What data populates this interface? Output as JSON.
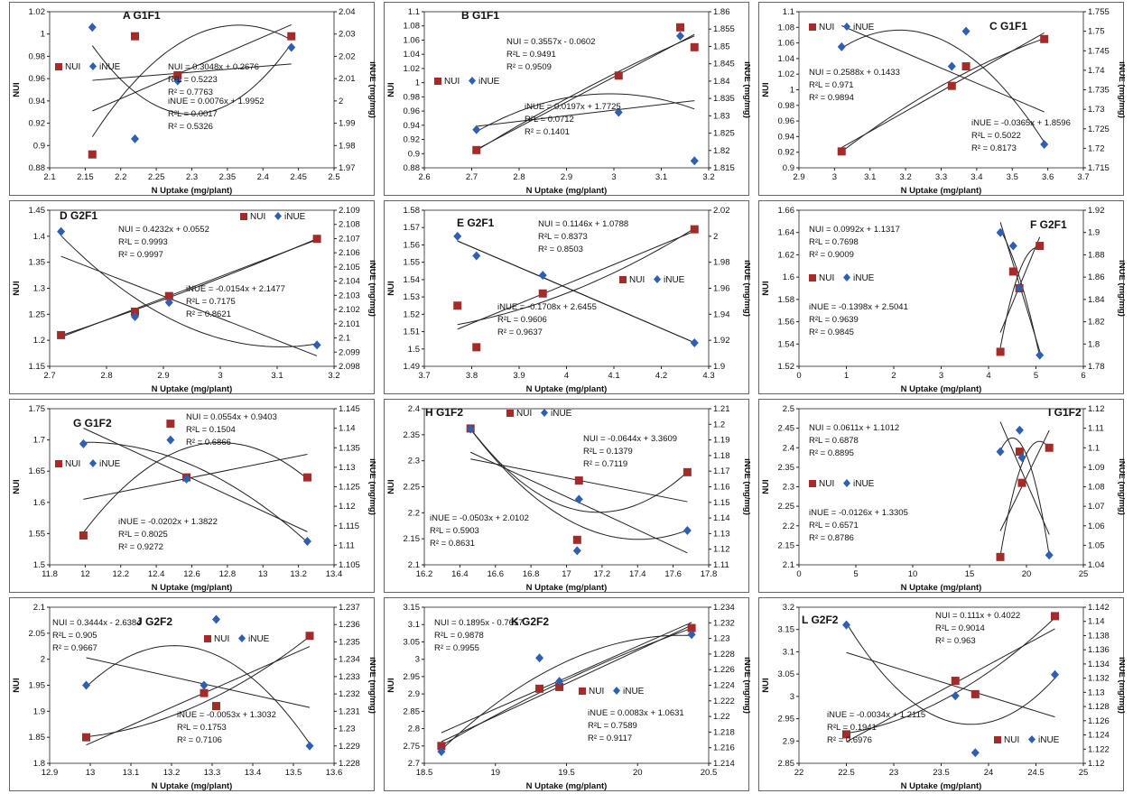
{
  "chart_data": [
    {
      "type": "scatter",
      "title": "A G1F1",
      "xlabel": "N Uptake (mg/plant)",
      "ylabel": "NUI",
      "y2label": "iNUE (mg/mg)",
      "xlim": [
        2.1,
        2.5
      ],
      "xticks": [
        2.1,
        2.15,
        2.2,
        2.25,
        2.3,
        2.35,
        2.4,
        2.45,
        2.5
      ],
      "ylim": [
        0.88,
        1.02
      ],
      "yticks": [
        0.88,
        0.9,
        0.92,
        0.94,
        0.96,
        0.98,
        1,
        1.02
      ],
      "y2lim": [
        1.97,
        2.04
      ],
      "y2ticks": [
        1.97,
        1.98,
        1.99,
        2,
        2.01,
        2.02,
        2.03,
        2.04
      ],
      "legend": [
        "NUI",
        "iNUE"
      ],
      "series": [
        {
          "name": "NUI",
          "x": [
            2.16,
            2.22,
            2.28,
            2.44
          ],
          "y": [
            0.892,
            0.998,
            0.963,
            0.998
          ]
        },
        {
          "name": "iNUE",
          "x": [
            2.16,
            2.22,
            2.28,
            2.44
          ],
          "y": [
            2.033,
            1.983,
            2.009,
            2.024
          ]
        }
      ],
      "equations": [
        "NUI = 0.3048x + 0.2676",
        "R²L = 0.5223",
        "R² = 0.7763",
        "iNUE = 0.0076x + 1.9952",
        "R²L = 0.0017",
        "R² = 0.5326"
      ]
    },
    {
      "type": "scatter",
      "title": "B G1F1",
      "xlabel": "N Uptake (mg/plant)",
      "ylabel": "NUI",
      "y2label": "iNUE (mg/mg)",
      "xlim": [
        2.6,
        3.2
      ],
      "xticks": [
        2.6,
        2.7,
        2.8,
        2.9,
        3,
        3.1,
        3.2
      ],
      "ylim": [
        0.88,
        1.1
      ],
      "yticks": [
        0.88,
        0.9,
        0.92,
        0.94,
        0.96,
        0.98,
        1,
        1.02,
        1.04,
        1.06,
        1.08,
        1.1
      ],
      "y2lim": [
        1.815,
        1.86
      ],
      "y2ticks": [
        1.815,
        1.82,
        1.825,
        1.83,
        1.835,
        1.84,
        1.845,
        1.85,
        1.855,
        1.86
      ],
      "legend": [
        "NUI",
        "iNUE"
      ],
      "series": [
        {
          "name": "NUI",
          "x": [
            2.71,
            3.01,
            3.14,
            3.17
          ],
          "y": [
            0.905,
            1.01,
            1.078,
            1.05
          ]
        },
        {
          "name": "iNUE",
          "x": [
            2.71,
            3.01,
            3.14,
            3.17
          ],
          "y": [
            1.826,
            1.831,
            1.853,
            1.817
          ]
        }
      ],
      "equations": [
        "NUI = 0.3557x - 0.0602",
        "R²L = 0.9491",
        "R² = 0.9509",
        "iNUE = 0.0197x + 1.7725",
        "R²L = 0.0712",
        "R² = 0.1401"
      ]
    },
    {
      "type": "scatter",
      "title": "C G1F1",
      "xlabel": "N Uptake (mg/plant)",
      "ylabel": "NUI",
      "y2label": "iNUE (mg/mg)",
      "xlim": [
        2.9,
        3.7
      ],
      "xticks": [
        2.9,
        3,
        3.1,
        3.2,
        3.3,
        3.4,
        3.5,
        3.6,
        3.7
      ],
      "ylim": [
        0.9,
        1.1
      ],
      "yticks": [
        0.9,
        0.92,
        0.94,
        0.96,
        0.98,
        1,
        1.02,
        1.04,
        1.06,
        1.08,
        1.1
      ],
      "y2lim": [
        1.715,
        1.755
      ],
      "y2ticks": [
        1.715,
        1.72,
        1.725,
        1.73,
        1.735,
        1.74,
        1.745,
        1.75,
        1.755
      ],
      "legend": [
        "NUI",
        "iNUE"
      ],
      "series": [
        {
          "name": "NUI",
          "x": [
            3.02,
            3.33,
            3.37,
            3.59
          ],
          "y": [
            0.921,
            1.005,
            1.03,
            1.065
          ]
        },
        {
          "name": "iNUE",
          "x": [
            3.02,
            3.33,
            3.37,
            3.59
          ],
          "y": [
            1.746,
            1.741,
            1.75,
            1.721
          ]
        }
      ],
      "equations": [
        "NUI = 0.2588x + 0.1433",
        "R²L = 0.971",
        "R² = 0.9894",
        "iNUE = -0.0365x + 1.8596",
        "R²L = 0.5022",
        "R² = 0.8173"
      ]
    },
    {
      "type": "scatter",
      "title": "D G2F1",
      "xlabel": "N Uptake (mg/plant)",
      "ylabel": "NUI",
      "y2label": "iNUE (mg/mg)",
      "xlim": [
        2.7,
        3.2
      ],
      "xticks": [
        2.7,
        2.8,
        2.9,
        3,
        3.1,
        3.2
      ],
      "ylim": [
        1.15,
        1.45
      ],
      "yticks": [
        1.15,
        1.2,
        1.25,
        1.3,
        1.35,
        1.4,
        1.45
      ],
      "y2lim": [
        2.098,
        2.109
      ],
      "y2ticks": [
        2.098,
        2.099,
        2.1,
        2.101,
        2.102,
        2.103,
        2.104,
        2.105,
        2.106,
        2.107,
        2.108,
        2.109
      ],
      "legend": [
        "NUI",
        "iNUE"
      ],
      "series": [
        {
          "name": "NUI",
          "x": [
            2.72,
            2.85,
            2.91,
            3.17
          ],
          "y": [
            1.21,
            1.255,
            1.285,
            1.395
          ]
        },
        {
          "name": "iNUE",
          "x": [
            2.72,
            2.85,
            2.91,
            3.17
          ],
          "y": [
            2.1075,
            2.1015,
            2.1025,
            2.0995
          ]
        }
      ],
      "equations": [
        "NUI = 0.4232x + 0.0552",
        "R²L = 0.9993",
        "R² = 0.9997",
        "iNUE = -0.0154x + 2.1477",
        "R²L = 0.7175",
        "R² = 0.8621"
      ]
    },
    {
      "type": "scatter",
      "title": "E G2F1",
      "xlabel": "N Uptake (mg/plant)",
      "ylabel": "NUI",
      "y2label": "iNUE (mg/mg)",
      "xlim": [
        3.7,
        4.3
      ],
      "xticks": [
        3.7,
        3.8,
        3.9,
        4,
        4.1,
        4.2,
        4.3
      ],
      "ylim": [
        1.49,
        1.58
      ],
      "yticks": [
        1.49,
        1.5,
        1.51,
        1.52,
        1.53,
        1.54,
        1.55,
        1.56,
        1.57,
        1.58
      ],
      "y2lim": [
        1.9,
        2.02
      ],
      "y2ticks": [
        1.9,
        1.92,
        1.94,
        1.96,
        1.98,
        2,
        2.02
      ],
      "legend": [
        "NUI",
        "iNUE"
      ],
      "series": [
        {
          "name": "NUI",
          "x": [
            3.77,
            3.81,
            3.95,
            4.27
          ],
          "y": [
            1.525,
            1.501,
            1.532,
            1.569
          ]
        },
        {
          "name": "iNUE",
          "x": [
            3.77,
            3.81,
            3.95,
            4.27
          ],
          "y": [
            2.0,
            1.985,
            1.97,
            1.918
          ]
        }
      ],
      "equations": [
        "NUI = 0.1146x + 1.0788",
        "R²L = 0.8373",
        "R² = 0.8503",
        "iNUE = -0.1708x + 2.6455",
        "R²L = 0.9606",
        "R² = 0.9637"
      ]
    },
    {
      "type": "scatter",
      "title": "F G2F1",
      "xlabel": "N Uptake (mg/plant)",
      "ylabel": "NUI",
      "y2label": "iNUE (mg/mg)",
      "xlim": [
        0,
        6
      ],
      "xticks": [
        0,
        1,
        2,
        3,
        4,
        5,
        6
      ],
      "ylim": [
        1.52,
        1.66
      ],
      "yticks": [
        1.52,
        1.54,
        1.56,
        1.58,
        1.6,
        1.62,
        1.64,
        1.66
      ],
      "y2lim": [
        1.78,
        1.92
      ],
      "y2ticks": [
        1.78,
        1.8,
        1.82,
        1.84,
        1.86,
        1.88,
        1.9,
        1.92
      ],
      "legend": [
        "NUI",
        "iNUE"
      ],
      "series": [
        {
          "name": "NUI",
          "x": [
            4.25,
            4.52,
            4.65,
            5.08
          ],
          "y": [
            1.533,
            1.605,
            1.59,
            1.628
          ]
        },
        {
          "name": "iNUE",
          "x": [
            4.25,
            4.52,
            4.65,
            5.08
          ],
          "y": [
            1.9,
            1.888,
            1.85,
            1.79
          ]
        }
      ],
      "equations": [
        "NUI = 0.0992x + 1.1317",
        "R²L = 0.7698",
        "R² = 0.9009",
        "iNUE = -0.1398x + 2.5041",
        "R²L = 0.9639",
        "R² = 0.9845"
      ]
    },
    {
      "type": "scatter",
      "title": "G G1F2",
      "xlabel": "N Uptake (mg/plant)",
      "ylabel": "NUI",
      "y2label": "iNUE (mg/mg)",
      "xlim": [
        11.8,
        13.4
      ],
      "xticks": [
        11.8,
        12,
        12.2,
        12.4,
        12.6,
        12.8,
        13,
        13.2,
        13.4
      ],
      "ylim": [
        1.5,
        1.75
      ],
      "yticks": [
        1.5,
        1.55,
        1.6,
        1.65,
        1.7,
        1.75
      ],
      "y2lim": [
        1.105,
        1.145
      ],
      "y2ticks": [
        1.105,
        1.11,
        1.115,
        1.12,
        1.125,
        1.13,
        1.135,
        1.14,
        1.145
      ],
      "legend": [
        "NUI",
        "iNUE"
      ],
      "series": [
        {
          "name": "NUI",
          "x": [
            11.99,
            12.48,
            12.57,
            13.25
          ],
          "y": [
            1.547,
            1.726,
            1.64,
            1.64
          ]
        },
        {
          "name": "iNUE",
          "x": [
            11.99,
            12.48,
            12.57,
            13.25
          ],
          "y": [
            1.136,
            1.137,
            1.127,
            1.111
          ]
        }
      ],
      "equations": [
        "NUI = 0.0554x + 0.9403",
        "R²L = 0.1504",
        "R² = 0.6866",
        "iNUE = -0.0202x + 1.3822",
        "R²L = 0.8025",
        "R² = 0.9272"
      ]
    },
    {
      "type": "scatter",
      "title": "H G1F2",
      "xlabel": "N Uptake (mg/plant)",
      "ylabel": "NUI",
      "y2label": "iNUE (mg/mg)",
      "xlim": [
        16.2,
        17.8
      ],
      "xticks": [
        16.2,
        16.4,
        16.6,
        16.8,
        17,
        17.2,
        17.4,
        17.6,
        17.8
      ],
      "ylim": [
        2.1,
        2.4
      ],
      "yticks": [
        2.1,
        2.15,
        2.2,
        2.25,
        2.3,
        2.35,
        2.4
      ],
      "y2lim": [
        1.11,
        1.21
      ],
      "y2ticks": [
        1.11,
        1.12,
        1.13,
        1.14,
        1.15,
        1.16,
        1.17,
        1.18,
        1.19,
        1.2,
        1.21
      ],
      "legend": [
        "NUI",
        "iNUE"
      ],
      "series": [
        {
          "name": "NUI",
          "x": [
            16.46,
            17.06,
            17.07,
            17.68
          ],
          "y": [
            2.362,
            2.148,
            2.262,
            2.278
          ]
        },
        {
          "name": "iNUE",
          "x": [
            16.46,
            17.06,
            17.07,
            17.68
          ],
          "y": [
            1.197,
            1.119,
            1.152,
            1.132
          ]
        }
      ],
      "equations": [
        "NUI = -0.0644x + 3.3609",
        "R²L = 0.1379",
        "R² = 0.7119",
        "iNUE = -0.0503x + 2.0102",
        "R²L = 0.5903",
        "R² = 0.8631"
      ]
    },
    {
      "type": "scatter",
      "title": "I G1F2",
      "xlabel": "N Uptake (mg/plant)",
      "ylabel": "NUI",
      "y2label": "iNUE (mg/mg)",
      "xlim": [
        0,
        25
      ],
      "xticks": [
        0,
        5,
        10,
        15,
        20,
        25
      ],
      "ylim": [
        2.1,
        2.5
      ],
      "yticks": [
        2.1,
        2.15,
        2.2,
        2.25,
        2.3,
        2.35,
        2.4,
        2.45,
        2.5
      ],
      "y2lim": [
        1.04,
        1.12
      ],
      "y2ticks": [
        1.04,
        1.05,
        1.06,
        1.07,
        1.08,
        1.09,
        1.1,
        1.11,
        1.12
      ],
      "legend": [
        "NUI",
        "iNUE"
      ],
      "series": [
        {
          "name": "NUI",
          "x": [
            17.7,
            19.4,
            19.6,
            22.0
          ],
          "y": [
            2.12,
            2.39,
            2.31,
            2.4
          ]
        },
        {
          "name": "iNUE",
          "x": [
            17.7,
            19.4,
            19.6,
            22.0
          ],
          "y": [
            1.098,
            1.109,
            1.095,
            1.045
          ]
        }
      ],
      "equations": [
        "NUI = 0.0611x + 1.1012",
        "R²L = 0.6878",
        "R² = 0.8895",
        "iNUE = -0.0126x + 1.3305",
        "R²L = 0.6571",
        "R² = 0.8786"
      ]
    },
    {
      "type": "scatter",
      "title": "J G2F2",
      "xlabel": "N Uptake (mg/plant)",
      "ylabel": "NUI",
      "y2label": "iNUE (mg/mg)",
      "xlim": [
        12.9,
        13.6
      ],
      "xticks": [
        12.9,
        13,
        13.1,
        13.2,
        13.3,
        13.4,
        13.5,
        13.6
      ],
      "ylim": [
        1.8,
        2.1
      ],
      "yticks": [
        1.8,
        1.85,
        1.9,
        1.95,
        2,
        2.05,
        2.1
      ],
      "y2lim": [
        1.228,
        1.237
      ],
      "y2ticks": [
        1.228,
        1.229,
        1.23,
        1.231,
        1.232,
        1.233,
        1.234,
        1.235,
        1.236,
        1.237
      ],
      "legend": [
        "NUI",
        "iNUE"
      ],
      "series": [
        {
          "name": "NUI",
          "x": [
            12.99,
            13.28,
            13.31,
            13.54
          ],
          "y": [
            1.85,
            1.935,
            1.91,
            2.045
          ]
        },
        {
          "name": "iNUE",
          "x": [
            12.99,
            13.28,
            13.31,
            13.54
          ],
          "y": [
            1.2325,
            1.2325,
            1.2363,
            1.229
          ]
        }
      ],
      "equations": [
        "NUI = 0.3444x - 2.6384",
        "R²L = 0.905",
        "R² = 0.9667",
        "iNUE = -0.0053x + 1.3032",
        "R²L = 0.1753",
        "R² = 0.7106"
      ]
    },
    {
      "type": "scatter",
      "title": "K G2F2",
      "xlabel": "N Uptake (mg/plant)",
      "ylabel": "NUI",
      "y2label": "iNUE (mg/mg)",
      "xlim": [
        18.5,
        20.5
      ],
      "xticks": [
        18.5,
        19,
        19.5,
        20,
        20.5
      ],
      "ylim": [
        2.7,
        3.15
      ],
      "yticks": [
        2.7,
        2.75,
        2.8,
        2.85,
        2.9,
        2.95,
        3,
        3.05,
        3.1,
        3.15
      ],
      "y2lim": [
        1.214,
        1.234
      ],
      "y2ticks": [
        1.214,
        1.216,
        1.218,
        1.22,
        1.222,
        1.224,
        1.226,
        1.228,
        1.23,
        1.232,
        1.234
      ],
      "legend": [
        "NUI",
        "iNUE"
      ],
      "series": [
        {
          "name": "NUI",
          "x": [
            18.62,
            19.31,
            19.45,
            20.38
          ],
          "y": [
            2.75,
            2.915,
            2.92,
            3.09
          ]
        },
        {
          "name": "iNUE",
          "x": [
            18.62,
            19.31,
            19.45,
            20.38
          ],
          "y": [
            1.2155,
            1.2275,
            1.2245,
            1.2305
          ]
        }
      ],
      "equations": [
        "NUI = 0.1895x - 0.7657",
        "R²L = 0.9878",
        "R² = 0.9955",
        "iNUE = 0.0083x + 1.0631",
        "R²L = 0.7589",
        "R² = 0.9117"
      ]
    },
    {
      "type": "scatter",
      "title": "L G2F2",
      "xlabel": "N Uptake (mg/plant)",
      "ylabel": "NUI",
      "y2label": "iNUE (mg/mg)",
      "xlim": [
        22,
        25
      ],
      "xticks": [
        22,
        22.5,
        23,
        23.5,
        24,
        24.5,
        25
      ],
      "ylim": [
        2.85,
        3.2
      ],
      "yticks": [
        2.85,
        2.9,
        2.95,
        3,
        3.05,
        3.1,
        3.15,
        3.2
      ],
      "y2lim": [
        1.12,
        1.142
      ],
      "y2ticks": [
        1.12,
        1.122,
        1.124,
        1.126,
        1.128,
        1.13,
        1.132,
        1.134,
        1.136,
        1.138,
        1.14,
        1.142
      ],
      "legend": [
        "NUI",
        "iNUE"
      ],
      "series": [
        {
          "name": "NUI",
          "x": [
            22.5,
            23.65,
            23.86,
            24.7
          ],
          "y": [
            2.915,
            3.035,
            3.005,
            3.18
          ]
        },
        {
          "name": "iNUE",
          "x": [
            22.5,
            23.65,
            23.86,
            24.7
          ],
          "y": [
            1.1395,
            1.1295,
            1.1215,
            1.1325
          ]
        }
      ],
      "equations": [
        "NUI = 0.111x + 0.4022",
        "R²L = 0.9014",
        "R² = 0.963",
        "iNUE = -0.0034x + 1.2115",
        "R²L = 0.1941",
        "R² = 0.6976"
      ]
    }
  ],
  "colors": {
    "NUI": "#a52a2a",
    "iNUE": "#2e5fb0",
    "axis": "#222222",
    "fit": "#222222"
  }
}
